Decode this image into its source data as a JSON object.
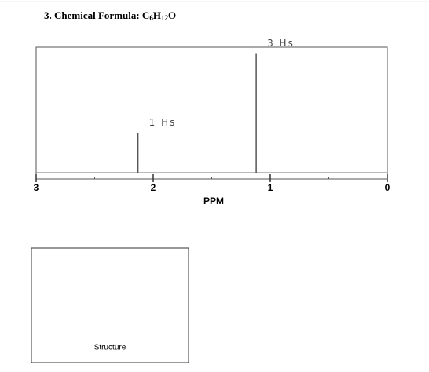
{
  "heading": "3.  Chemical Formula: ",
  "formula": [
    "C",
    "6",
    "H",
    "12",
    "O"
  ],
  "chart_data": {
    "type": "spectrum",
    "x": [
      2.13,
      1.12
    ],
    "values": [
      1,
      3
    ],
    "value_labels": [
      "1 Hs",
      "3 Hs"
    ],
    "xlim": [
      3,
      0
    ],
    "xticks": [
      3,
      2,
      1,
      0
    ],
    "minor_xticks": [
      2.5,
      1.5,
      0.5
    ],
    "xlabel": "PPM",
    "color": "#555555"
  },
  "structure_label": "Structure"
}
